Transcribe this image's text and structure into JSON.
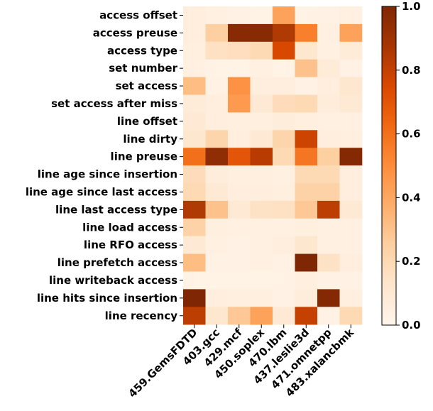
{
  "chart_data": {
    "type": "heatmap",
    "title": "",
    "xlabel": "",
    "ylabel": "",
    "colormap": "Oranges",
    "colormap_stops": [
      "#fff5eb",
      "#fee6ce",
      "#fdd0a2",
      "#fdae6b",
      "#fd8d3c",
      "#f16913",
      "#d94801",
      "#a63603",
      "#7f2704"
    ],
    "rows": [
      "access offset",
      "access preuse",
      "access type",
      "set number",
      "set access",
      "set access after miss",
      "line offset",
      "line dirty",
      "line preuse",
      "line age since insertion",
      "line age since last access",
      "line last access type",
      "line load access",
      "line RFO access",
      "line prefetch access",
      "line writeback access",
      "line hits since insertion",
      "line recency"
    ],
    "columns": [
      "459.GemsFDTD",
      "403.gcc",
      "429.mcf",
      "450.soplex",
      "470.lbm",
      "437.leslie3d",
      "471.omnetpp",
      "483.xalancbmk"
    ],
    "values": [
      [
        0.06,
        0.04,
        0.03,
        0.02,
        0.42,
        0.02,
        0.03,
        0.04
      ],
      [
        0.06,
        0.25,
        0.97,
        0.97,
        0.85,
        0.55,
        0.04,
        0.42
      ],
      [
        0.05,
        0.16,
        0.17,
        0.2,
        0.75,
        0.12,
        0.04,
        0.08
      ],
      [
        0.04,
        0.02,
        0.02,
        0.04,
        0.02,
        0.3,
        0.08,
        0.03
      ],
      [
        0.32,
        0.03,
        0.48,
        0.06,
        0.06,
        0.03,
        0.06,
        0.12
      ],
      [
        0.08,
        0.06,
        0.45,
        0.1,
        0.18,
        0.2,
        0.07,
        0.1
      ],
      [
        0.1,
        0.06,
        0.05,
        0.05,
        0.07,
        0.05,
        0.04,
        0.04
      ],
      [
        0.12,
        0.22,
        0.06,
        0.1,
        0.22,
        0.78,
        0.06,
        0.05
      ],
      [
        0.6,
        0.95,
        0.7,
        0.83,
        0.2,
        0.58,
        0.25,
        0.98
      ],
      [
        0.18,
        0.07,
        0.05,
        0.05,
        0.04,
        0.2,
        0.2,
        0.06
      ],
      [
        0.2,
        0.1,
        0.06,
        0.06,
        0.05,
        0.24,
        0.24,
        0.06
      ],
      [
        0.85,
        0.3,
        0.1,
        0.15,
        0.16,
        0.28,
        0.82,
        0.1
      ],
      [
        0.24,
        0.05,
        0.04,
        0.04,
        0.04,
        0.05,
        0.04,
        0.04
      ],
      [
        0.1,
        0.04,
        0.03,
        0.04,
        0.06,
        0.12,
        0.04,
        0.04
      ],
      [
        0.32,
        0.03,
        0.03,
        0.04,
        0.03,
        1.0,
        0.15,
        0.06
      ],
      [
        0.02,
        0.02,
        0.02,
        0.02,
        0.02,
        0.05,
        0.03,
        0.03
      ],
      [
        1.0,
        0.06,
        0.05,
        0.05,
        0.03,
        0.07,
        0.98,
        0.05
      ],
      [
        0.82,
        0.12,
        0.28,
        0.42,
        0.1,
        0.8,
        0.03,
        0.2
      ]
    ],
    "colorbar": {
      "range": [
        0.0,
        1.0
      ],
      "ticks": [
        "0.0",
        "0.2",
        "0.4",
        "0.6",
        "0.8",
        "1.0"
      ]
    }
  }
}
